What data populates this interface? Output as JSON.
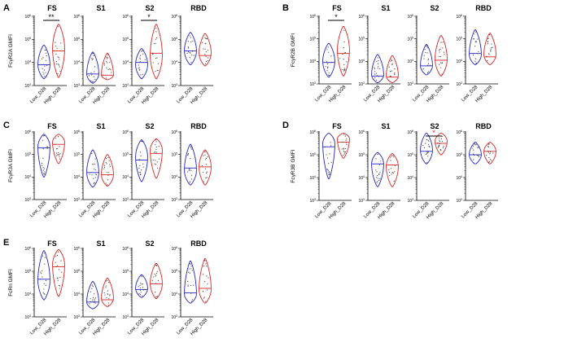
{
  "colors": {
    "low": "#2222cc",
    "high": "#dd2222",
    "axis": "#000000"
  },
  "chart_data": [
    {
      "type": "violin",
      "panel": "A",
      "ylabel": "FcγR2A GMFI",
      "yscale": "log",
      "ylim_exp": [
        3,
        6
      ],
      "ticks": [
        {
          "base": "10",
          "exp": "3"
        },
        {
          "base": "10",
          "exp": "4"
        },
        {
          "base": "10",
          "exp": "5"
        },
        {
          "base": "10",
          "exp": "6"
        }
      ],
      "categories": [
        "Low_D28",
        "High_D28"
      ],
      "subplots": [
        {
          "title": "FS",
          "low": {
            "min": 3.3,
            "max": 4.75,
            "median": 3.9,
            "peak": 3.9
          },
          "high": {
            "min": 3.35,
            "max": 5.65,
            "median": 4.5,
            "peak": 4.6
          },
          "sig": "**"
        },
        {
          "title": "S1",
          "low": {
            "min": 3.1,
            "max": 4.45,
            "median": 3.5,
            "peak": 3.5
          },
          "high": {
            "min": 3.25,
            "max": 4.4,
            "median": 3.45,
            "peak": 3.45
          },
          "sig": ""
        },
        {
          "title": "S2",
          "low": {
            "min": 3.3,
            "max": 4.6,
            "median": 4.0,
            "peak": 3.9
          },
          "high": {
            "min": 3.3,
            "max": 5.65,
            "median": 4.4,
            "peak": 4.3
          },
          "sig": "*"
        },
        {
          "title": "RBD",
          "low": {
            "min": 3.9,
            "max": 5.3,
            "median": 4.5,
            "peak": 4.5
          },
          "high": {
            "min": 3.85,
            "max": 5.25,
            "median": 4.3,
            "peak": 4.4
          },
          "sig": ""
        }
      ]
    },
    {
      "type": "violin",
      "panel": "B",
      "ylabel": "FcγR2B GMFI",
      "yscale": "log",
      "ylim_exp": [
        3,
        6
      ],
      "ticks": [
        {
          "base": "10",
          "exp": "3"
        },
        {
          "base": "10",
          "exp": "4"
        },
        {
          "base": "10",
          "exp": "5"
        },
        {
          "base": "10",
          "exp": "6"
        }
      ],
      "categories": [
        "Low_D28",
        "High_D28"
      ],
      "subplots": [
        {
          "title": "FS",
          "low": {
            "min": 3.3,
            "max": 4.8,
            "median": 3.95,
            "peak": 4.0
          },
          "high": {
            "min": 3.35,
            "max": 5.55,
            "median": 4.35,
            "peak": 4.5
          },
          "sig": "*"
        },
        {
          "title": "S1",
          "low": {
            "min": 3.05,
            "max": 4.3,
            "median": 3.35,
            "peak": 3.4
          },
          "high": {
            "min": 3.05,
            "max": 4.25,
            "median": 3.3,
            "peak": 3.35
          },
          "sig": ""
        },
        {
          "title": "S2",
          "low": {
            "min": 3.4,
            "max": 4.75,
            "median": 3.8,
            "peak": 3.8
          },
          "high": {
            "min": 3.35,
            "max": 5.15,
            "median": 4.05,
            "peak": 4.1
          },
          "sig": ""
        },
        {
          "title": "RBD",
          "low": {
            "min": 3.85,
            "max": 5.4,
            "median": 4.35,
            "peak": 4.3
          },
          "high": {
            "min": 3.85,
            "max": 5.25,
            "median": 4.2,
            "peak": 4.3
          },
          "sig": ""
        }
      ]
    },
    {
      "type": "violin",
      "panel": "C",
      "ylabel": "FcγR3A GMFI",
      "yscale": "log",
      "ylim_exp": [
        3,
        6
      ],
      "ticks": [
        {
          "base": "10",
          "exp": "3"
        },
        {
          "base": "10",
          "exp": "4"
        },
        {
          "base": "10",
          "exp": "5"
        },
        {
          "base": "10",
          "exp": "6"
        }
      ],
      "categories": [
        "Low_D28",
        "High_D28"
      ],
      "subplots": [
        {
          "title": "FS",
          "low": {
            "min": 4.0,
            "max": 5.9,
            "median": 5.3,
            "peak": 5.35
          },
          "high": {
            "min": 4.6,
            "max": 5.9,
            "median": 5.45,
            "peak": 5.55
          },
          "sig": ""
        },
        {
          "title": "S1",
          "low": {
            "min": 3.55,
            "max": 5.2,
            "median": 4.2,
            "peak": 4.2
          },
          "high": {
            "min": 3.6,
            "max": 5.0,
            "median": 4.1,
            "peak": 4.1
          },
          "sig": ""
        },
        {
          "title": "S2",
          "low": {
            "min": 3.8,
            "max": 5.65,
            "median": 4.75,
            "peak": 4.9
          },
          "high": {
            "min": 3.95,
            "max": 5.7,
            "median": 5.05,
            "peak": 5.2
          },
          "sig": ""
        },
        {
          "title": "RBD",
          "low": {
            "min": 3.65,
            "max": 5.45,
            "median": 4.4,
            "peak": 4.3
          },
          "high": {
            "min": 3.65,
            "max": 5.2,
            "median": 4.45,
            "peak": 4.45
          },
          "sig": ""
        }
      ]
    },
    {
      "type": "violin",
      "panel": "D",
      "ylabel": "FcγR3B GMFI",
      "yscale": "log",
      "ylim_exp": [
        3,
        6
      ],
      "ticks": [
        {
          "base": "10",
          "exp": "3"
        },
        {
          "base": "10",
          "exp": "4"
        },
        {
          "base": "10",
          "exp": "5"
        },
        {
          "base": "10",
          "exp": "6"
        }
      ],
      "categories": [
        "Low_D28",
        "High_D28"
      ],
      "subplots": [
        {
          "title": "FS",
          "low": {
            "min": 3.95,
            "max": 5.95,
            "median": 5.35,
            "peak": 5.5
          },
          "high": {
            "min": 4.85,
            "max": 5.95,
            "median": 5.55,
            "peak": 5.7
          },
          "sig": ""
        },
        {
          "title": "S1",
          "low": {
            "min": 3.6,
            "max": 5.1,
            "median": 4.6,
            "peak": 4.6
          },
          "high": {
            "min": 3.6,
            "max": 5.05,
            "median": 4.55,
            "peak": 4.5
          },
          "sig": ""
        },
        {
          "title": "S2",
          "low": {
            "min": 4.6,
            "max": 5.95,
            "median": 5.15,
            "peak": 5.2
          },
          "high": {
            "min": 5.0,
            "max": 5.95,
            "median": 5.5,
            "peak": 5.6
          },
          "sig": "*"
        },
        {
          "title": "RBD",
          "low": {
            "min": 4.6,
            "max": 5.55,
            "median": 5.0,
            "peak": 5.0
          },
          "high": {
            "min": 4.6,
            "max": 5.55,
            "median": 5.15,
            "peak": 5.15
          },
          "sig": ""
        }
      ]
    },
    {
      "type": "violin",
      "panel": "E",
      "ylabel": "FcRn GMFI",
      "yscale": "log",
      "ylim_exp": [
        3,
        6
      ],
      "ticks": [
        {
          "base": "10",
          "exp": "3"
        },
        {
          "base": "10",
          "exp": "4"
        },
        {
          "base": "10",
          "exp": "5"
        },
        {
          "base": "10",
          "exp": "6"
        }
      ],
      "categories": [
        "Low_D28",
        "High_D28"
      ],
      "subplots": [
        {
          "title": "FS",
          "low": {
            "min": 3.75,
            "max": 5.9,
            "median": 4.65,
            "peak": 4.6
          },
          "high": {
            "min": 3.9,
            "max": 5.95,
            "median": 5.2,
            "peak": 5.3
          },
          "sig": ""
        },
        {
          "title": "S1",
          "low": {
            "min": 3.35,
            "max": 4.55,
            "median": 3.65,
            "peak": 3.65
          },
          "high": {
            "min": 3.45,
            "max": 4.7,
            "median": 3.75,
            "peak": 3.8
          },
          "sig": ""
        },
        {
          "title": "S2",
          "low": {
            "min": 3.85,
            "max": 4.85,
            "median": 4.2,
            "peak": 4.25
          },
          "high": {
            "min": 3.8,
            "max": 5.35,
            "median": 4.45,
            "peak": 4.45
          },
          "sig": ""
        },
        {
          "title": "RBD",
          "low": {
            "min": 3.6,
            "max": 5.45,
            "median": 4.05,
            "peak": 4.0
          },
          "high": {
            "min": 3.6,
            "max": 5.55,
            "median": 4.25,
            "peak": 4.2
          },
          "sig": ""
        }
      ]
    }
  ]
}
